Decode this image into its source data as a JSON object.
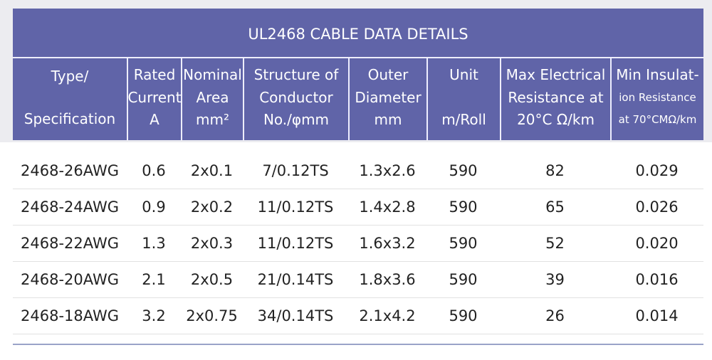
{
  "table": {
    "title": "UL2468 CABLE DATA DETAILS",
    "header": [
      [
        "Type/",
        "Specification"
      ],
      [
        "Rated",
        "Current",
        "A"
      ],
      [
        "Nominal",
        "Area",
        "mm²"
      ],
      [
        "Structure of",
        "Conductor",
        "No./φmm"
      ],
      [
        "Outer",
        "Diameter",
        "mm"
      ],
      [
        "Unit",
        "m/Roll"
      ],
      [
        "Max Electrical",
        "Resistance at",
        "20°C Ω/km"
      ],
      [
        "Min Insulat-",
        "ion Resistance",
        "at 70°CMΩ/km"
      ]
    ],
    "rows": [
      [
        "2468-26AWG",
        "0.6",
        "2x0.1",
        "7/0.12TS",
        "1.3x2.6",
        "590",
        "82",
        "0.029"
      ],
      [
        "2468-24AWG",
        "0.9",
        "2x0.2",
        "11/0.12TS",
        "1.4x2.8",
        "590",
        "65",
        "0.026"
      ],
      [
        "2468-22AWG",
        "1.3",
        "2x0.3",
        "11/0.12TS",
        "1.6x3.2",
        "590",
        "52",
        "0.020"
      ],
      [
        "2468-20AWG",
        "2.1",
        "2x0.5",
        "21/0.14TS",
        "1.8x3.6",
        "590",
        "39",
        "0.016"
      ],
      [
        "2468-18AWG",
        "3.2",
        "2x0.75",
        "34/0.14TS",
        "2.1x4.2",
        "590",
        "26",
        "0.014"
      ]
    ]
  }
}
